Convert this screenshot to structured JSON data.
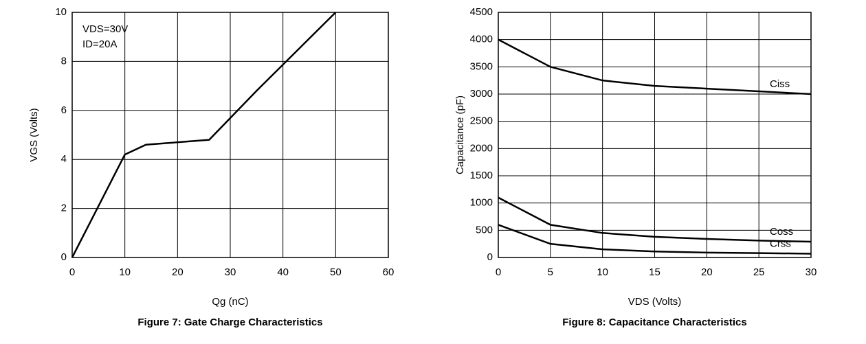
{
  "chart_data": [
    {
      "type": "line",
      "caption": "Figure 7: Gate Charge Characteristics",
      "x_label": "Qg (nC)",
      "y_label": "VGS (Volts)",
      "annotations": [
        "VDS=30V",
        "ID=20A"
      ],
      "x": [
        0,
        10,
        14,
        26,
        35,
        50
      ],
      "values": [
        0,
        4.2,
        4.6,
        4.8,
        6.8,
        10
      ],
      "color": "#000000",
      "xlim": [
        0,
        60
      ],
      "xticks": [
        0,
        10,
        20,
        30,
        40,
        50,
        60
      ],
      "ylim": [
        0,
        10
      ],
      "yticks": [
        0,
        2,
        4,
        6,
        8,
        10
      ],
      "grid": true
    },
    {
      "type": "line",
      "caption": "Figure 8: Capacitance Characteristics",
      "x_label": "VDS (Volts)",
      "y_label": "Capacitance (pF)",
      "x": [
        0,
        5,
        10,
        15,
        20,
        25,
        30
      ],
      "series": [
        {
          "name": "Ciss",
          "color": "#000000",
          "values": [
            4000,
            3500,
            3250,
            3150,
            3100,
            3050,
            3000
          ]
        },
        {
          "name": "Coss",
          "color": "#000000",
          "values": [
            1100,
            600,
            450,
            380,
            340,
            310,
            290
          ]
        },
        {
          "name": "Crss",
          "color": "#000000",
          "values": [
            600,
            250,
            150,
            110,
            90,
            80,
            70
          ]
        }
      ],
      "xlim": [
        0,
        30
      ],
      "xticks": [
        0,
        5,
        10,
        15,
        20,
        25,
        30
      ],
      "ylim": [
        0,
        4500
      ],
      "yticks": [
        0,
        500,
        1000,
        1500,
        2000,
        2500,
        3000,
        3500,
        4000,
        4500
      ],
      "grid": true
    }
  ]
}
